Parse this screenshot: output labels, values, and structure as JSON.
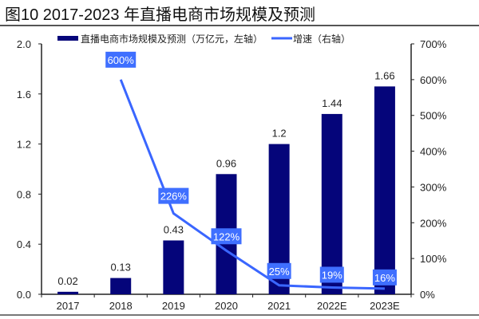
{
  "title": "图10 2017-2023 年直播电商市场规模及预测",
  "colors": {
    "bar": "#05057a",
    "line": "#3a66ff",
    "label_box": "#3f6fff"
  },
  "chart_data": {
    "type": "bar+line",
    "categories": [
      "2017",
      "2018",
      "2019",
      "2020",
      "2021",
      "2022E",
      "2023E"
    ],
    "series": [
      {
        "name": "直播电商市场规模及预测（万亿元，左轴）",
        "type": "bar",
        "axis": "left",
        "values": [
          0.02,
          0.13,
          0.43,
          0.96,
          1.2,
          1.44,
          1.66
        ],
        "labels": [
          "0.02",
          "0.13",
          "0.43",
          "0.96",
          "1.2",
          "1.44",
          "1.66"
        ]
      },
      {
        "name": "增速（右轴）",
        "type": "line",
        "axis": "right",
        "values": [
          null,
          600,
          226,
          122,
          25,
          19,
          16
        ],
        "labels": [
          null,
          "600%",
          "226%",
          "122%",
          "25%",
          "19%",
          "16%"
        ]
      }
    ],
    "left_axis": {
      "ylim": [
        0,
        2.0
      ],
      "ticks": [
        "0.0",
        "0.4",
        "0.8",
        "1.2",
        "1.6",
        "2.0"
      ]
    },
    "right_axis": {
      "ylim": [
        0,
        700
      ],
      "ticks": [
        "0%",
        "100%",
        "200%",
        "300%",
        "400%",
        "500%",
        "600%",
        "700%"
      ]
    },
    "grid": false,
    "legend": "top"
  }
}
